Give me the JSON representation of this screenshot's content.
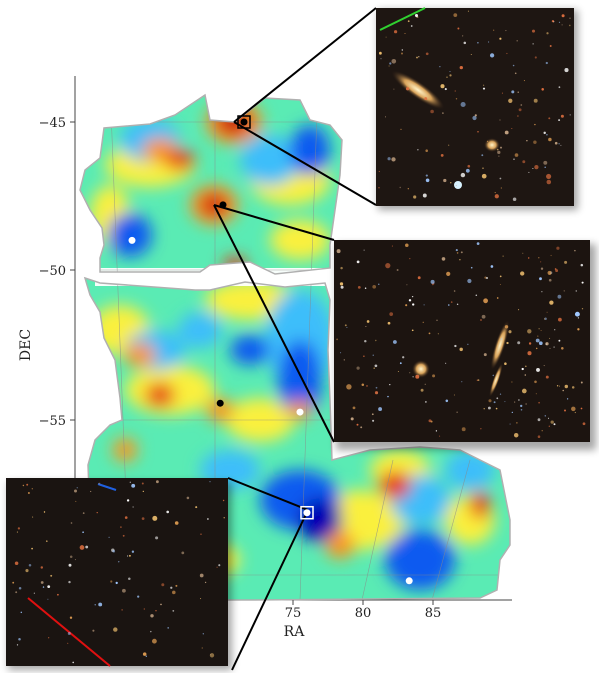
{
  "chart_data": {
    "type": "heatmap",
    "title": "",
    "xlabel": "RA",
    "ylabel": "DEC",
    "x_ticks": [
      "75",
      "80",
      "85"
    ],
    "y_ticks": [
      "−45",
      "−50",
      "−55"
    ],
    "xlim": [
      60,
      90
    ],
    "ylim": [
      -65,
      -43
    ],
    "colormap": [
      "#0000b4",
      "#0a5af0",
      "#3cbefa",
      "#5aebb4",
      "#b4f064",
      "#faf03c",
      "#fa961e",
      "#e63214",
      "#a00a0a"
    ],
    "features": [
      {
        "kind": "peak",
        "ra": 71.5,
        "dec": -45.0,
        "level": "high",
        "marker": "black-square"
      },
      {
        "kind": "peak",
        "ra": 70.0,
        "dec": -47.8,
        "level": "high",
        "marker": "black-dot"
      },
      {
        "kind": "point",
        "ra": 69.8,
        "dec": -54.5,
        "marker": "black-dot"
      },
      {
        "kind": "void",
        "ra": 63.5,
        "dec": -49.0,
        "level": "low",
        "marker": "white-dot"
      },
      {
        "kind": "void",
        "ra": 75.5,
        "dec": -54.8,
        "level": "low",
        "marker": "white-dot"
      },
      {
        "kind": "void",
        "ra": 76.0,
        "dec": -58.2,
        "level": "low",
        "marker": "white-square"
      },
      {
        "kind": "void",
        "ra": 83.3,
        "dec": -60.5,
        "level": "low",
        "marker": "white-dot"
      }
    ],
    "insets": [
      {
        "position": "top-right",
        "linked_to": "peak near RA 71.5, DEC -45"
      },
      {
        "position": "middle-right",
        "linked_to": "peak near RA 70, DEC -47.8"
      },
      {
        "position": "bottom-left",
        "linked_to": "void near RA 76, DEC -58.2"
      }
    ]
  }
}
